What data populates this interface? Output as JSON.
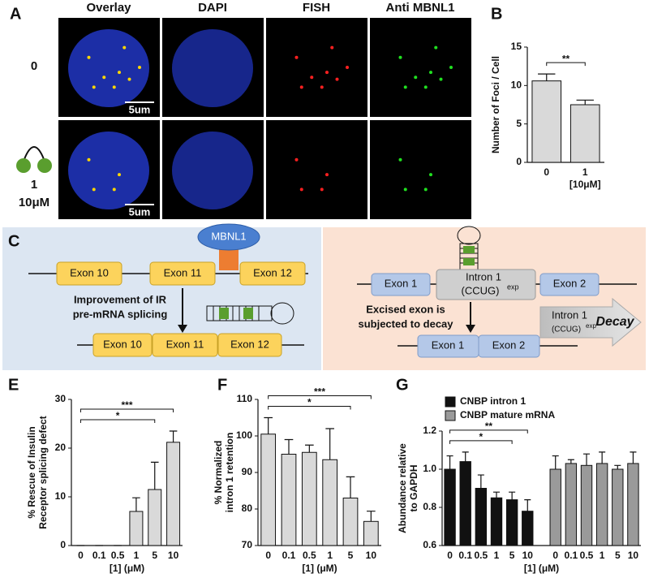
{
  "panel_a": {
    "panel": "A",
    "columns": [
      "Overlay",
      "DAPI",
      "FISH",
      "Anti MBNL1"
    ],
    "rows": [
      "0",
      "1"
    ],
    "dose": "10μM",
    "scale_bar": "5um"
  },
  "panel_c": {
    "panel": "C",
    "ir": {
      "exons_top": [
        "Exon 10",
        "Exon 11",
        "Exon 12"
      ],
      "protein": "MBNL1",
      "caption": [
        "Improvement of IR",
        "pre-mRNA splicing"
      ],
      "exons_bottom": [
        "Exon 10",
        "Exon 11",
        "Exon 12"
      ]
    },
    "cnbp": {
      "exon_1": "Exon 1",
      "intron": "Intron 1",
      "repeat": "(CCUG)",
      "repeat_sup": "exp",
      "exon_2": "Exon 2",
      "caption": [
        "Excised exon is",
        "subjected to decay"
      ],
      "decay": "Decay"
    }
  },
  "chart_data": [
    {
      "panel": "B",
      "type": "bar",
      "y_label": [
        "Number of Foci / Cell"
      ],
      "categories": [
        "0",
        "1"
      ],
      "x_sublabel": "[10μM]",
      "values": [
        10.6,
        7.5
      ],
      "errors": [
        0.9,
        0.6
      ],
      "color": "#d9d9d9",
      "ylim": [
        0,
        15
      ],
      "yticks": [
        0,
        5,
        10,
        15
      ],
      "annotations": [
        {
          "text": "**",
          "between": [
            "0",
            "1"
          ]
        }
      ]
    },
    {
      "panel": "E",
      "type": "bar",
      "y_label": [
        "% Rescue of Insulin",
        "Receptor splicing defect"
      ],
      "x_label": "[1] (μM)",
      "categories": [
        "0",
        "0.1",
        "0.5",
        "1",
        "5",
        "10"
      ],
      "values": [
        0,
        0,
        0,
        7,
        11.5,
        21.2
      ],
      "errors": [
        0,
        0,
        0,
        2.8,
        5.6,
        2.3
      ],
      "color": "#d9d9d9",
      "ylim": [
        0,
        30
      ],
      "yticks": [
        0,
        10,
        20,
        30
      ],
      "annotations": [
        {
          "text": "*",
          "between": [
            "0",
            "5"
          ]
        },
        {
          "text": "***",
          "between": [
            "0",
            "10"
          ]
        }
      ]
    },
    {
      "panel": "F",
      "type": "bar",
      "y_label": [
        "% Normalized",
        "intron 1 retention"
      ],
      "x_label": "[1] (μM)",
      "categories": [
        "0",
        "0.1",
        "0.5",
        "1",
        "5",
        "10"
      ],
      "values": [
        100.5,
        95,
        95.5,
        93.5,
        83,
        76.6
      ],
      "errors": [
        4.5,
        4,
        2,
        8.5,
        5.8,
        2.8
      ],
      "color": "#d9d9d9",
      "ylim": [
        70,
        110
      ],
      "yticks": [
        70,
        80,
        90,
        100,
        110
      ],
      "annotations": [
        {
          "text": "*",
          "between": [
            "0",
            "5"
          ]
        },
        {
          "text": "***",
          "between": [
            "0",
            "10"
          ]
        }
      ]
    },
    {
      "panel": "G",
      "type": "bar",
      "y_label": [
        "Abundance relative",
        "to GAPDH"
      ],
      "x_label": "[1] (μM)",
      "categories": [
        "0",
        "0.1",
        "0.5",
        "1",
        "5",
        "10"
      ],
      "series": [
        {
          "name": "CNBP intron 1",
          "color": "#111111",
          "values": [
            1.0,
            1.04,
            0.9,
            0.85,
            0.84,
            0.78
          ],
          "errors": [
            0.07,
            0.05,
            0.07,
            0.03,
            0.04,
            0.06
          ]
        },
        {
          "name": "CNBP mature mRNA",
          "color": "#9a9a9a",
          "values": [
            1.0,
            1.03,
            1.02,
            1.03,
            1.0,
            1.03
          ],
          "errors": [
            0.07,
            0.02,
            0.06,
            0.06,
            0.02,
            0.06
          ]
        }
      ],
      "ylim": [
        0.6,
        1.2
      ],
      "yticks": [
        0.6,
        0.8,
        {
          "value": 1,
          "label": "1.0"
        },
        1.2
      ],
      "annotations": [
        {
          "text": "*",
          "between": [
            "0",
            "5"
          ]
        },
        {
          "text": "**",
          "between": [
            "0",
            "10"
          ]
        }
      ]
    }
  ]
}
